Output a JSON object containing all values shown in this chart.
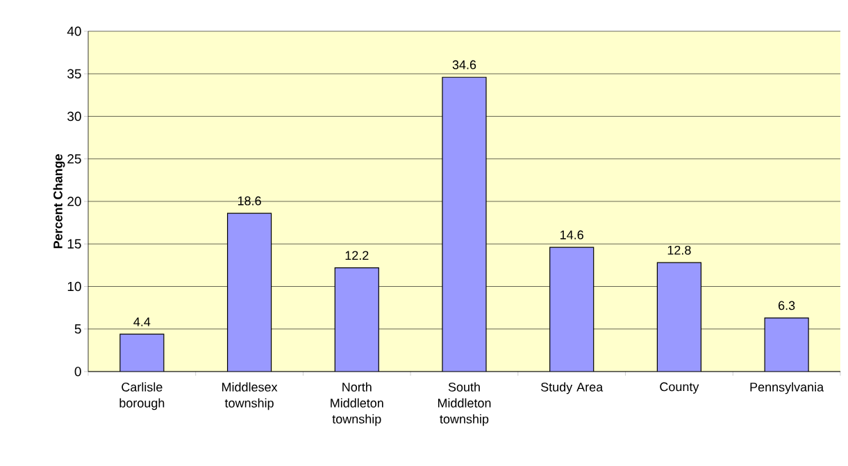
{
  "chart_data": {
    "type": "bar",
    "ylabel": "Percent Change",
    "categories": [
      "Carlisle borough",
      "Middlesex township",
      "North Middleton township",
      "South Middleton township",
      "Study Area",
      "County",
      "Pennsylvania"
    ],
    "values": [
      4.4,
      18.6,
      12.2,
      34.6,
      14.6,
      12.8,
      6.3
    ],
    "color": "#9999ff",
    "ylim": [
      0,
      40
    ],
    "yticks": [
      0,
      5,
      10,
      15,
      20,
      25,
      30,
      35,
      40
    ],
    "grid": "y",
    "data_labels": true
  }
}
